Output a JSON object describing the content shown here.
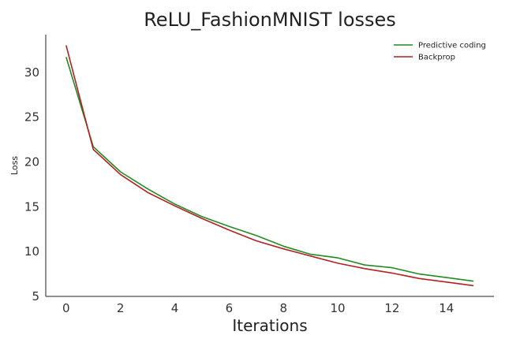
{
  "chart_data": {
    "type": "line",
    "title": "ReLU_FashionMNIST losses",
    "xlabel": "Iterations",
    "ylabel": "Loss",
    "x": [
      0,
      1,
      2,
      3,
      4,
      5,
      6,
      7,
      8,
      9,
      10,
      11,
      12,
      13,
      14,
      15
    ],
    "xlim": [
      -0.75,
      15.75
    ],
    "ylim": [
      5,
      34.2
    ],
    "xticks": [
      0,
      2,
      4,
      6,
      8,
      10,
      12,
      14
    ],
    "yticks": [
      5,
      10,
      15,
      20,
      25,
      30
    ],
    "grid": false,
    "legend": "top-right",
    "series": [
      {
        "name": "Predictive coding",
        "color": "#228b22",
        "values": [
          31.7,
          21.7,
          18.9,
          17.0,
          15.3,
          13.9,
          12.8,
          11.8,
          10.6,
          9.7,
          9.3,
          8.5,
          8.2,
          7.5,
          7.1,
          6.7
        ]
      },
      {
        "name": "Backprop",
        "color": "#b22222",
        "values": [
          33.0,
          21.4,
          18.6,
          16.6,
          15.1,
          13.7,
          12.4,
          11.2,
          10.3,
          9.5,
          8.7,
          8.1,
          7.6,
          7.0,
          6.6,
          6.2
        ]
      }
    ]
  }
}
